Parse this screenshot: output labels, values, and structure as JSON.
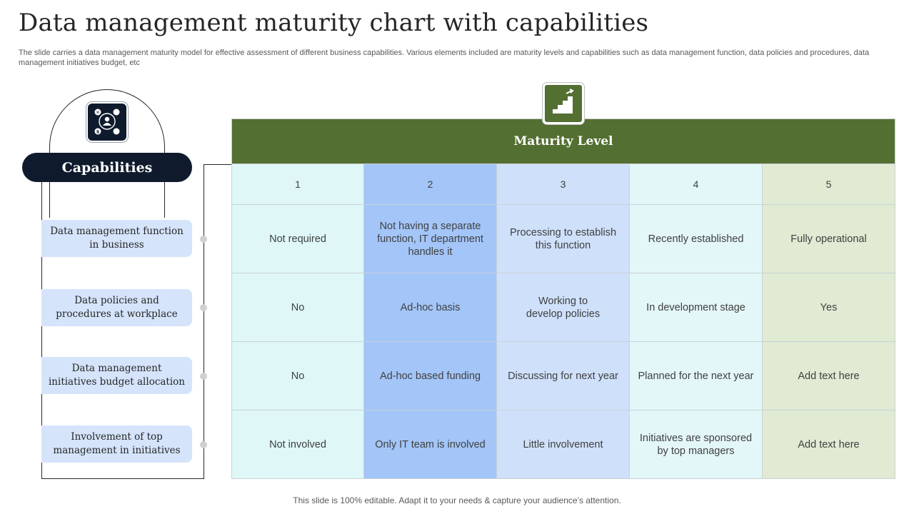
{
  "title": "Data management maturity chart with capabilities",
  "subtitle": "The slide carries a data management maturity model for effective  assessment of different business capabilities. Various elements included are maturity levels and capabilities such as data management function, data policies and procedures, data management initiatives budget, etc",
  "capabilities": {
    "heading": "Capabilities",
    "icon": "people-network-icon",
    "items": [
      "Data management function in business",
      "Data policies and procedures at workplace",
      "Data management initiatives  budget allocation",
      "Involvement of top management in initiatives"
    ]
  },
  "maturity": {
    "heading": "Maturity Level",
    "icon": "stairs-growth-icon",
    "levels": [
      "1",
      "2",
      "3",
      "4",
      "5"
    ],
    "rows": [
      [
        "Not required",
        "Not having a separate function, IT department handles it",
        "Processing to establish this function",
        "Recently established",
        "Fully operational"
      ],
      [
        "No",
        "Ad-hoc basis",
        "Working to develop policies",
        "In development stage",
        "Yes"
      ],
      [
        "No",
        "Ad-hoc based funding",
        "Discussing for next year",
        "Planned for the next year",
        "Add text here"
      ],
      [
        "Not involved",
        "Only IT team is involved",
        "Little involvement",
        "Initiatives  are sponsored by top managers",
        "Add text here"
      ]
    ]
  },
  "colors": {
    "navy": "#0f1b2d",
    "green": "#546f32",
    "level1": "#dff7f7",
    "level2": "#a3c5f8",
    "level3": "#cfe0fa",
    "level4": "#e3f6f8",
    "level5": "#e1ead3",
    "capability_box": "#d5e4fb"
  },
  "footer": "This slide is 100% editable. Adapt it to your needs & capture your audience’s attention."
}
